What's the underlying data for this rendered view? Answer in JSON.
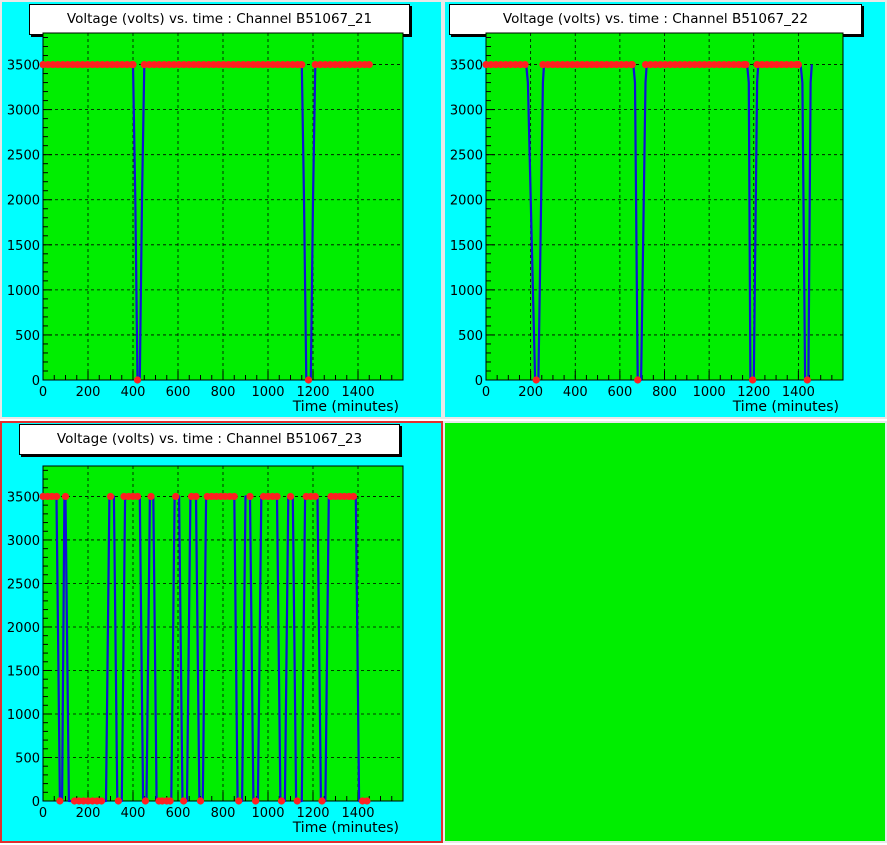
{
  "colors": {
    "pad_background": "#00ffff",
    "frame_fill": "#00ee00",
    "line": "#1010d8",
    "marker": "#ff2020",
    "grid": "#000000"
  },
  "chart_data": [
    {
      "type": "line",
      "title": "Voltage (volts) vs. time  : Channel B51067_21",
      "xlabel": "Time (minutes)",
      "ylabel": "",
      "xlim": [
        0,
        1600
      ],
      "ylim": [
        0,
        3850
      ],
      "xticks": [
        0,
        200,
        400,
        600,
        800,
        1000,
        1200,
        1400
      ],
      "xtick_labels": [
        "0",
        "200",
        "400",
        "600",
        "800",
        "1000",
        "1200",
        "1400"
      ],
      "yticks": [
        0,
        500,
        1000,
        1500,
        2000,
        2500,
        3000,
        3500
      ],
      "ytick_labels": [
        "0",
        "500",
        "1000",
        "1500",
        "2000",
        "2500",
        "3000",
        "3500"
      ],
      "grid": true,
      "series": [
        {
          "x": [
            0,
            400,
            410,
            420,
            430,
            440,
            450,
            1450
          ],
          "y": [
            3500,
            3500,
            2000,
            0,
            0,
            2000,
            3500,
            3500
          ],
          "gaps": [
            [
              1150,
              3500
            ],
            [
              1160,
              2000
            ],
            [
              1170,
              0
            ],
            [
              1180,
              0
            ],
            [
              1190,
              0
            ],
            [
              1200,
              2000
            ],
            [
              1210,
              3500
            ]
          ],
          "marker_segments": [
            [
              0,
              400
            ],
            [
              450,
              1150
            ],
            [
              1210,
              1450
            ]
          ],
          "zero_markers": [
            420,
            1180
          ]
        }
      ]
    },
    {
      "type": "line",
      "title": "Voltage (volts) vs. time  : Channel B51067_22",
      "xlabel": "Time (minutes)",
      "ylabel": "",
      "xlim": [
        0,
        1600
      ],
      "ylim": [
        0,
        3850
      ],
      "xticks": [
        0,
        200,
        400,
        600,
        800,
        1000,
        1200,
        1400
      ],
      "xtick_labels": [
        "0",
        "200",
        "400",
        "600",
        "800",
        "1000",
        "1200",
        "1400"
      ],
      "yticks": [
        0,
        500,
        1000,
        1500,
        2000,
        2500,
        3000,
        3500
      ],
      "ytick_labels": [
        "0",
        "500",
        "1000",
        "1500",
        "2000",
        "2500",
        "3000",
        "3500"
      ],
      "grid": true,
      "series": [
        {
          "drops": [
            [
              180,
              230,
              260
            ],
            [
              660,
              690,
              720
            ],
            [
              1170,
              1195,
              1220
            ],
            [
              1410,
              1440,
              1460
            ]
          ],
          "marker_segments": [
            [
              0,
              175
            ],
            [
              255,
              655
            ],
            [
              715,
              1165
            ],
            [
              1215,
              1400
            ]
          ],
          "zero_markers": [
            225,
            680,
            1195,
            1440
          ]
        }
      ]
    },
    {
      "type": "line",
      "title": "Voltage (volts) vs. time  : Channel B51067_23",
      "xlabel": "Time (minutes)",
      "ylabel": "",
      "xlim": [
        0,
        1600
      ],
      "ylim": [
        0,
        3850
      ],
      "xticks": [
        0,
        200,
        400,
        600,
        800,
        1000,
        1200,
        1400
      ],
      "xtick_labels": [
        "0",
        "200",
        "400",
        "600",
        "800",
        "1000",
        "1200",
        "1400"
      ],
      "yticks": [
        0,
        500,
        1000,
        1500,
        2000,
        2500,
        3000,
        3500
      ],
      "ytick_labels": [
        "0",
        "500",
        "1000",
        "1500",
        "2000",
        "2500",
        "3000",
        "3500"
      ],
      "grid": true,
      "series": [
        {
          "breakpoints": [
            [
              0,
              3500
            ],
            [
              60,
              3500
            ],
            [
              75,
              0
            ],
            [
              85,
              0
            ],
            [
              95,
              3500
            ],
            [
              100,
              3500
            ],
            [
              115,
              0
            ],
            [
              280,
              0
            ],
            [
              295,
              3500
            ],
            [
              315,
              3500
            ],
            [
              330,
              0
            ],
            [
              350,
              0
            ],
            [
              365,
              3500
            ],
            [
              430,
              3500
            ],
            [
              445,
              0
            ],
            [
              460,
              0
            ],
            [
              475,
              3500
            ],
            [
              490,
              3500
            ],
            [
              505,
              0
            ],
            [
              570,
              0
            ],
            [
              585,
              3500
            ],
            [
              605,
              3500
            ],
            [
              620,
              0
            ],
            [
              640,
              0
            ],
            [
              655,
              3500
            ],
            [
              680,
              3500
            ],
            [
              695,
              0
            ],
            [
              710,
              0
            ],
            [
              725,
              3500
            ],
            [
              850,
              3500
            ],
            [
              865,
              0
            ],
            [
              885,
              0
            ],
            [
              900,
              3500
            ],
            [
              920,
              3500
            ],
            [
              935,
              0
            ],
            [
              955,
              0
            ],
            [
              970,
              3500
            ],
            [
              1040,
              3500
            ],
            [
              1055,
              0
            ],
            [
              1075,
              0
            ],
            [
              1090,
              3500
            ],
            [
              1110,
              3500
            ],
            [
              1125,
              0
            ],
            [
              1150,
              0
            ],
            [
              1165,
              3500
            ],
            [
              1220,
              3500
            ],
            [
              1235,
              0
            ],
            [
              1255,
              0
            ],
            [
              1270,
              3500
            ],
            [
              1390,
              3500
            ],
            [
              1405,
              0
            ],
            [
              1450,
              0
            ]
          ],
          "marker_points": [
            0,
            20,
            40,
            60,
            100,
            300,
            360,
            380,
            400,
            420,
            480,
            590,
            660,
            680,
            730,
            750,
            770,
            790,
            810,
            830,
            850,
            920,
            980,
            1000,
            1020,
            1040,
            1100,
            1170,
            1190,
            1210,
            1280,
            1300,
            1320,
            1340,
            1360,
            1380
          ],
          "zero_marker_points": [
            75,
            140,
            160,
            180,
            200,
            220,
            240,
            260,
            335,
            455,
            515,
            530,
            550,
            565,
            625,
            700,
            870,
            945,
            1060,
            1130,
            1240,
            1420,
            1440
          ]
        }
      ]
    }
  ]
}
